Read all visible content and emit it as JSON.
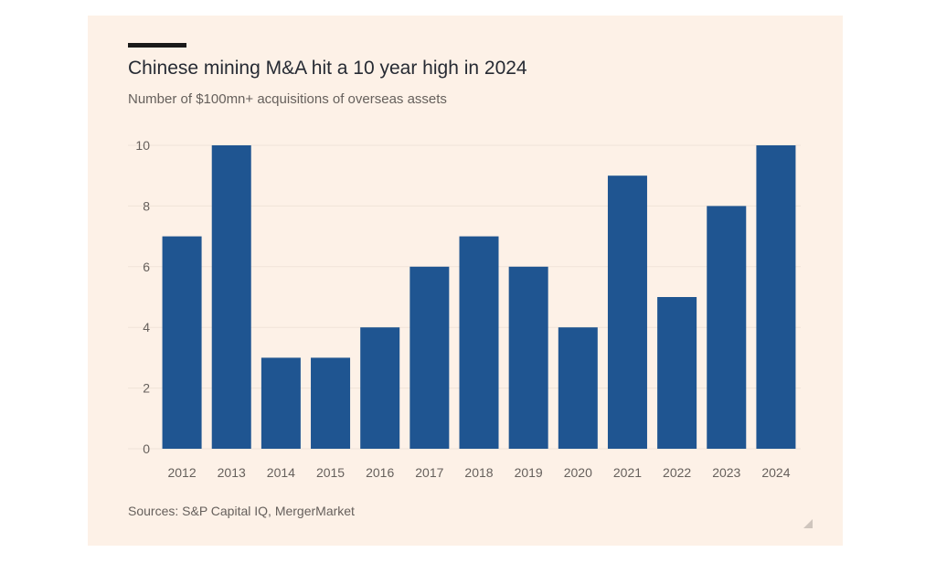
{
  "chart_data": {
    "type": "bar",
    "title": "Chinese mining M&A hit a 10 year high in 2024",
    "subtitle": "Number of $100mn+ acquisitions of overseas assets",
    "source": "Sources: S&P Capital IQ, MergerMarket",
    "categories": [
      "2012",
      "2013",
      "2014",
      "2015",
      "2016",
      "2017",
      "2018",
      "2019",
      "2020",
      "2021",
      "2022",
      "2023",
      "2024"
    ],
    "values": [
      7,
      10,
      3,
      3,
      4,
      6,
      7,
      6,
      4,
      9,
      5,
      8,
      10
    ],
    "yticks": [
      0,
      2,
      4,
      6,
      8,
      10
    ],
    "ylim": [
      0,
      10
    ],
    "xlabel": "",
    "ylabel": "",
    "grid": true,
    "bar_color": "#1f5591",
    "grid_color": "#f0e3d8",
    "background": "#fdf1e7"
  }
}
